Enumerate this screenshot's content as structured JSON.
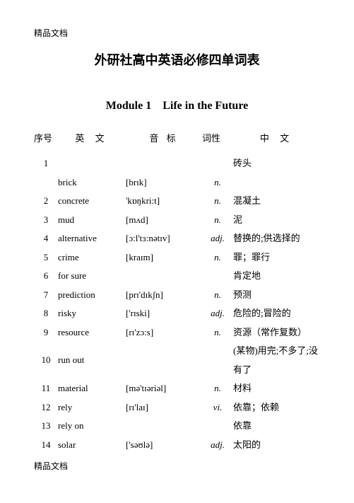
{
  "header_tag": "精品文档",
  "footer_tag": "精品文档",
  "main_title": "外研社高中英语必修四单词表",
  "module_title": "Module 1 Life in the Future",
  "columns": {
    "num": "序号",
    "eng": "英 文",
    "phon": "音 标",
    "pos": "词性",
    "chn": "中 文"
  },
  "rows": [
    {
      "num": "1",
      "eng": "",
      "phon": "",
      "pos": "",
      "chn": "砖头"
    },
    {
      "num": "",
      "eng": "brick",
      "phon": "[brɪk]",
      "pos": "n.",
      "chn": ""
    },
    {
      "num": "2",
      "eng": "concrete",
      "phon": "'kɒŋkri:t]",
      "pos": "n.",
      "chn": "混凝土"
    },
    {
      "num": "3",
      "eng": "mud",
      "phon": "[mʌd]",
      "pos": "n.",
      "chn": "泥"
    },
    {
      "num": "4",
      "eng": "alternative",
      "phon": "[ɔ:l'tɜ:nətɪv]",
      "pos": "adj.",
      "chn": "替换的;供选择的"
    },
    {
      "num": "5",
      "eng": "crime",
      "phon": "[kraɪm]",
      "pos": "n.",
      "chn": "罪；罪行"
    },
    {
      "num": "6",
      "eng": "for sure",
      "phon": "",
      "pos": "",
      "chn": "肯定地"
    },
    {
      "num": "7",
      "eng": "prediction",
      "phon": "[prɪ'dɪkʃn]",
      "pos": "n.",
      "chn": "预测"
    },
    {
      "num": "8",
      "eng": "risky",
      "phon": "['rɪski]",
      "pos": "adj.",
      "chn": "危险的;冒险的"
    },
    {
      "num": "9",
      "eng": "resource",
      "phon": "[rɪ'zɔ:s]",
      "pos": "n.",
      "chn": "资源（常作复数）"
    },
    {
      "num": "10",
      "eng": "run out",
      "phon": "",
      "pos": "",
      "chn": "(某物)用完;不多了;没有了"
    },
    {
      "num": "11",
      "eng": "material",
      "phon": "[mə'tɪəriəl]",
      "pos": "n.",
      "chn": "材料"
    },
    {
      "num": "12",
      "eng": "rely",
      "phon": "[rɪ'laɪ]",
      "pos": "vi.",
      "chn": "依靠；依赖"
    },
    {
      "num": "13",
      "eng": "rely on",
      "phon": "",
      "pos": "",
      "chn": "依靠"
    },
    {
      "num": "14",
      "eng": "solar",
      "phon": "['səʊlə]",
      "pos": "adj.",
      "chn": "太阳的"
    }
  ]
}
